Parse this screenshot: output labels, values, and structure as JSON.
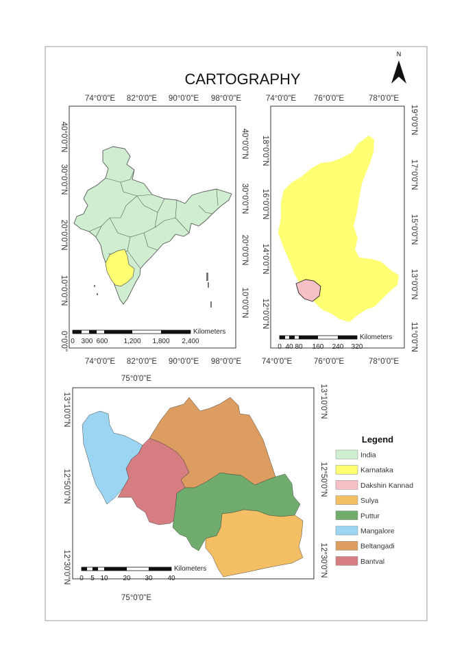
{
  "title": "CARTOGRAPHY",
  "north_label": "N",
  "panels": {
    "india": {
      "top_ticks": [
        "74°0'0\"E",
        "82°0'0\"E",
        "90°0'0\"E",
        "98°0'0\"E"
      ],
      "bottom_ticks": [
        "74°0'0\"E",
        "82°0'0\"E",
        "90°0'0\"E",
        "98°0'0\"E"
      ],
      "left_ticks": [
        "40°0'0\"N",
        "30°0'0\"N",
        "20°0'0\"N",
        "10°0'0\"N",
        "0°0'0\""
      ],
      "right_ticks": [
        "40°0'0\"N",
        "30°0'0\"N",
        "20°0'0\"N",
        "10°0'0\"N"
      ],
      "scale_unit": "Kilometers",
      "scale_labels": [
        "0",
        "300",
        "600",
        "1,200",
        "1,800",
        "2,400"
      ]
    },
    "karnataka": {
      "top_ticks": [
        "74°0'0\"E",
        "76°0'0\"E",
        "78°0'0\"E"
      ],
      "bottom_ticks": [
        "74°0'0\"E",
        "76°0'0\"E",
        "78°0'0\"E"
      ],
      "left_ticks": [
        "18°0'0\"N",
        "16°0'0\"N",
        "14°0'0\"N",
        "12°0'0\"N"
      ],
      "right_ticks": [
        "19°0'0\"N",
        "17°0'0\"N",
        "15°0'0\"N",
        "13°0'0\"N",
        "11°0'0\"N"
      ],
      "scale_unit": "Kilometers",
      "scale_labels": [
        "0",
        "40",
        "80",
        "160",
        "240",
        "320"
      ]
    },
    "dakshin": {
      "top_ticks": [
        "75°0'0\"E"
      ],
      "bottom_ticks": [
        "75°0'0\"E"
      ],
      "left_ticks": [
        "13°10'0\"N",
        "12°50'0\"N",
        "12°30'0\"N"
      ],
      "right_ticks": [
        "13°10'0\"N",
        "12°50'0\"N",
        "12°30'0\"N"
      ],
      "scale_unit": "Kilometers",
      "scale_labels": [
        "0",
        "5",
        "10",
        "20",
        "30",
        "40"
      ]
    }
  },
  "legend": {
    "title": "Legend",
    "items": [
      {
        "label": "India",
        "color": "#cfeecf"
      },
      {
        "label": "Karnataka",
        "color": "#ffff73"
      },
      {
        "label": "Dakshin Kannad",
        "color": "#f7c0c6"
      },
      {
        "label": "Sulya",
        "color": "#f4be65"
      },
      {
        "label": "Puttur",
        "color": "#70ad6d"
      },
      {
        "label": "Mangalore",
        "color": "#9bd5f2"
      },
      {
        "label": "Beltangadi",
        "color": "#dd9d60"
      },
      {
        "label": "Bantval",
        "color": "#d57d80"
      }
    ]
  }
}
